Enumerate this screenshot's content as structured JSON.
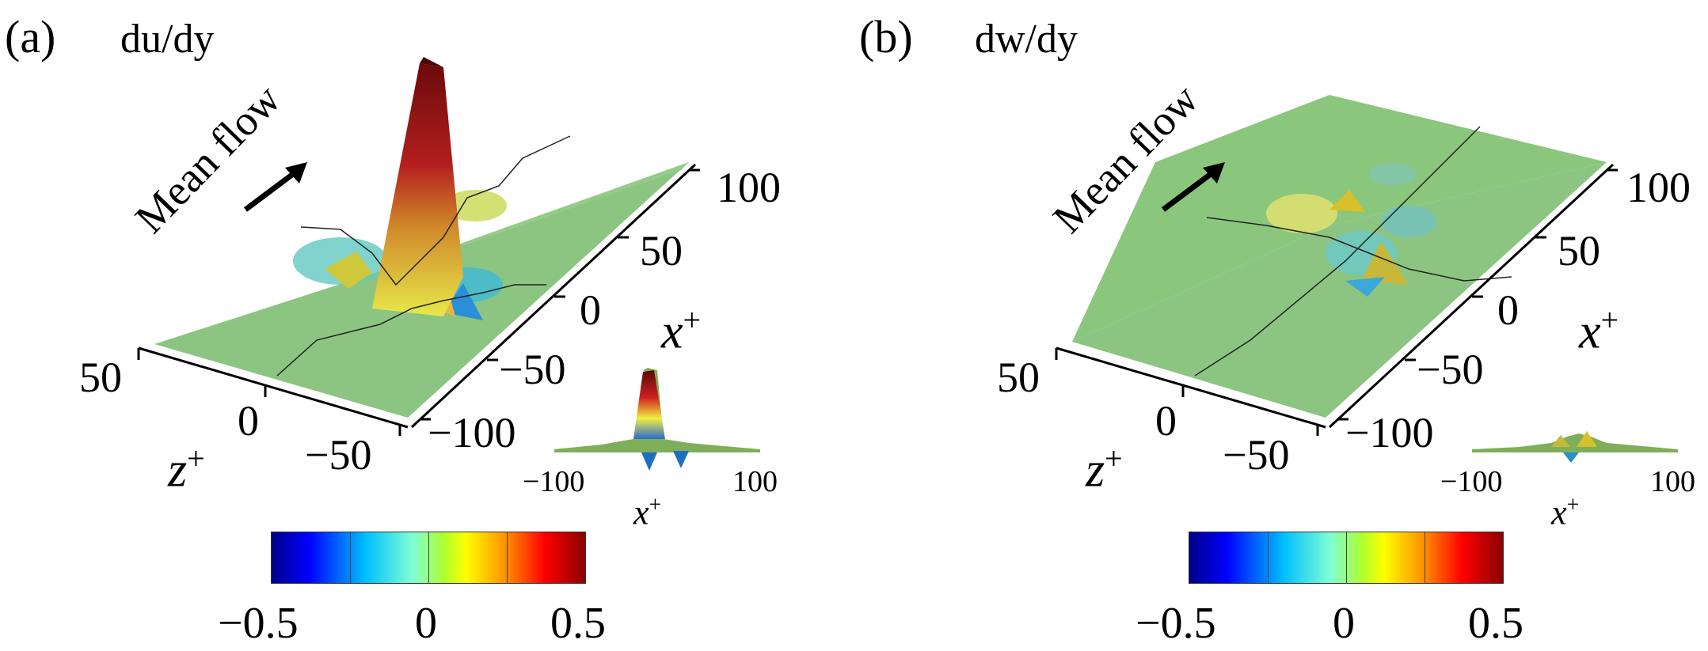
{
  "panels": [
    {
      "label": "(a)",
      "title": "du/dy",
      "mean_flow": "Mean flow",
      "x_axis": {
        "name": "x",
        "sup": "+",
        "ticks": [
          "100",
          "50",
          "0",
          "−50",
          "−100"
        ]
      },
      "z_axis": {
        "name": "z",
        "sup": "+",
        "ticks": [
          "50",
          "0",
          "−50"
        ]
      },
      "inset": {
        "ticks": [
          "−100",
          "100"
        ],
        "axis": "x",
        "sup": "+"
      },
      "colorbar": {
        "ticks": [
          "−0.5",
          "0",
          "0.5"
        ],
        "range": [
          -0.5,
          0.5
        ]
      }
    },
    {
      "label": "(b)",
      "title": "dw/dy",
      "mean_flow": "Mean flow",
      "x_axis": {
        "name": "x",
        "sup": "+",
        "ticks": [
          "100",
          "50",
          "0",
          "−50",
          "−100"
        ]
      },
      "z_axis": {
        "name": "z",
        "sup": "+",
        "ticks": [
          "50",
          "0",
          "−50"
        ]
      },
      "inset": {
        "ticks": [
          "−100",
          "100"
        ],
        "axis": "x",
        "sup": "+"
      },
      "colorbar": {
        "ticks": [
          "−0.5",
          "0",
          "0.5"
        ],
        "range": [
          -0.5,
          0.5
        ]
      }
    }
  ],
  "colors": {
    "surface": "#7fbf6f",
    "colormap": [
      "#00008b",
      "#0000ff",
      "#00bfff",
      "#7fffd4",
      "#adff2f",
      "#ffff00",
      "#ff8c00",
      "#ff0000",
      "#8b0000"
    ]
  }
}
